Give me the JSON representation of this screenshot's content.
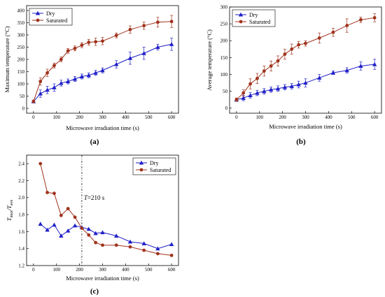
{
  "chart_data": [
    {
      "panel_label": "(a)",
      "type": "line",
      "xlabel": "Microwave irradiation time (s)",
      "ylabel": "Maximum temperature (°C)",
      "xlim": [
        -30,
        630
      ],
      "ylim": [
        -20,
        420
      ],
      "xticks": [
        0,
        100,
        200,
        300,
        400,
        500,
        600
      ],
      "yticks": [
        0,
        50,
        100,
        150,
        200,
        250,
        300,
        350,
        400
      ],
      "legend_position": "top-left",
      "series": [
        {
          "name": "Dry",
          "color": "#1f1fc8",
          "marker": "triangle",
          "x": [
            0,
            30,
            60,
            90,
            120,
            150,
            180,
            210,
            240,
            270,
            300,
            360,
            420,
            480,
            540,
            600
          ],
          "y": [
            28,
            60,
            75,
            85,
            103,
            110,
            120,
            130,
            135,
            145,
            155,
            180,
            205,
            225,
            250,
            262
          ],
          "err": [
            5,
            15,
            15,
            15,
            12,
            10,
            10,
            10,
            10,
            10,
            10,
            15,
            25,
            25,
            12,
            25
          ]
        },
        {
          "name": "Saturated",
          "color": "#a0331d",
          "marker": "circle",
          "x": [
            0,
            30,
            60,
            90,
            120,
            150,
            180,
            210,
            240,
            270,
            300,
            360,
            420,
            480,
            540,
            600
          ],
          "y": [
            28,
            110,
            145,
            175,
            200,
            235,
            245,
            258,
            270,
            272,
            275,
            298,
            322,
            338,
            352,
            355
          ],
          "err": [
            5,
            15,
            15,
            10,
            10,
            10,
            10,
            10,
            12,
            15,
            15,
            10,
            15,
            15,
            20,
            25
          ]
        }
      ]
    },
    {
      "panel_label": "(b)",
      "type": "line",
      "xlabel": "Microwave irradiation time (s)",
      "ylabel": "Average temperature (°C)",
      "xlim": [
        -30,
        630
      ],
      "ylim": [
        -15,
        300
      ],
      "xticks": [
        0,
        100,
        200,
        300,
        400,
        500,
        600
      ],
      "yticks": [
        0,
        50,
        100,
        150,
        200,
        250,
        300
      ],
      "legend_position": "top-left",
      "series": [
        {
          "name": "Dry",
          "color": "#1f1fc8",
          "marker": "triangle",
          "x": [
            0,
            30,
            60,
            90,
            120,
            150,
            180,
            210,
            240,
            270,
            300,
            360,
            420,
            480,
            540,
            600
          ],
          "y": [
            25,
            30,
            38,
            45,
            50,
            55,
            58,
            62,
            65,
            70,
            75,
            90,
            105,
            112,
            125,
            130
          ],
          "err": [
            5,
            8,
            8,
            8,
            8,
            8,
            8,
            8,
            8,
            10,
            12,
            10,
            5,
            8,
            12,
            15
          ]
        },
        {
          "name": "Saturated",
          "color": "#a0331d",
          "marker": "circle",
          "x": [
            0,
            30,
            60,
            90,
            120,
            150,
            180,
            210,
            240,
            270,
            300,
            360,
            420,
            480,
            540,
            600
          ],
          "y": [
            25,
            45,
            72,
            88,
            110,
            125,
            140,
            160,
            175,
            188,
            192,
            208,
            225,
            245,
            262,
            268
          ],
          "err": [
            5,
            10,
            15,
            15,
            15,
            15,
            15,
            15,
            15,
            10,
            8,
            15,
            12,
            20,
            8,
            12
          ]
        }
      ]
    },
    {
      "panel_label": "(c)",
      "type": "line",
      "xlabel": "Microwave irradiation time (s)",
      "ylabel_main": "T",
      "ylabel_sub1": "max",
      "ylabel_slash": "/T",
      "ylabel_sub2": "ave",
      "xlim": [
        -30,
        630
      ],
      "ylim": [
        1.2,
        2.5
      ],
      "xticks": [
        0,
        100,
        200,
        300,
        400,
        500,
        600
      ],
      "yticks": [
        1.2,
        1.4,
        1.6,
        1.8,
        2.0,
        2.2,
        2.4
      ],
      "legend_position": "top-right",
      "annotation": {
        "text": "T=210 s",
        "x": 210
      },
      "series": [
        {
          "name": "Dry",
          "color": "#1f1fc8",
          "marker": "triangle",
          "x": [
            30,
            60,
            90,
            120,
            150,
            180,
            210,
            240,
            270,
            300,
            360,
            420,
            480,
            540,
            600
          ],
          "y": [
            1.69,
            1.62,
            1.68,
            1.55,
            1.61,
            1.67,
            1.65,
            1.63,
            1.58,
            1.59,
            1.55,
            1.48,
            1.46,
            1.4,
            1.45
          ]
        },
        {
          "name": "Saturated",
          "color": "#a0331d",
          "marker": "circle",
          "x": [
            30,
            60,
            90,
            120,
            150,
            180,
            210,
            240,
            270,
            300,
            360,
            420,
            480,
            540,
            600
          ],
          "y": [
            2.4,
            2.06,
            2.05,
            1.79,
            1.87,
            1.77,
            1.64,
            1.56,
            1.47,
            1.44,
            1.44,
            1.42,
            1.38,
            1.34,
            1.32
          ]
        }
      ]
    }
  ]
}
